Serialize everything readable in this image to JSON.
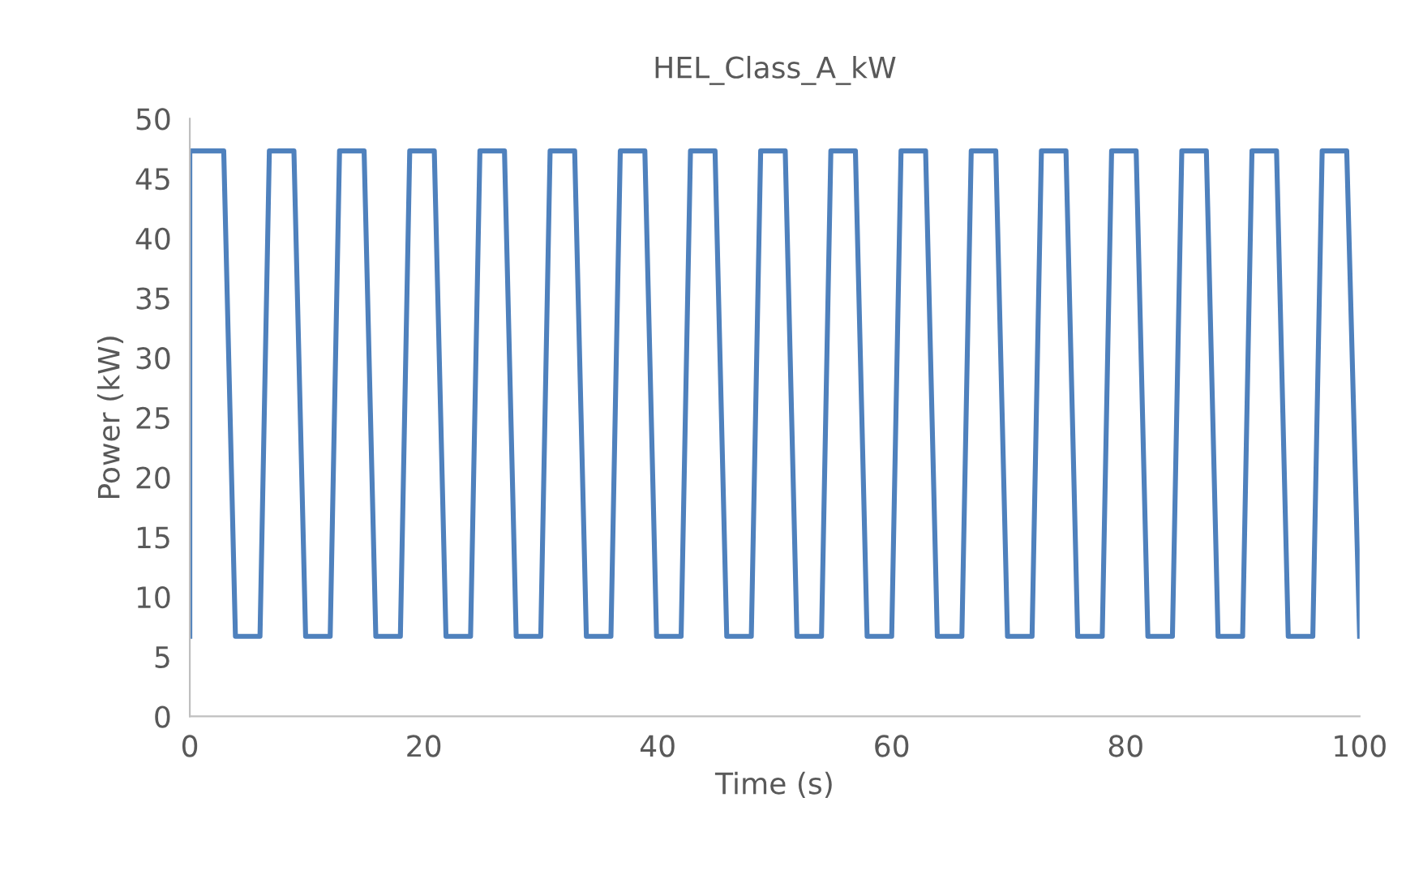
{
  "chart_data": {
    "type": "line",
    "title": "HEL_Class_A_kW",
    "xlabel": "Time (s)",
    "ylabel": "Power (kW)",
    "xlim": [
      0,
      100
    ],
    "xticks": [
      0,
      20,
      40,
      60,
      80,
      100
    ],
    "ylim": [
      0,
      50
    ],
    "yticks": [
      0,
      5,
      10,
      15,
      20,
      25,
      30,
      35,
      40,
      45,
      50
    ],
    "grid": false,
    "marker": "none",
    "line_style": "solid",
    "series": [
      {
        "color": "#4f81bd",
        "x": [
          0,
          0,
          2.9,
          3.9,
          6,
          6.8,
          8.9,
          9.9,
          12,
          12.8,
          14.9,
          15.9,
          18,
          18.8,
          20.9,
          21.9,
          24,
          24.8,
          26.9,
          27.9,
          30,
          30.8,
          32.9,
          33.9,
          36,
          36.8,
          38.9,
          39.9,
          42,
          42.8,
          44.9,
          45.9,
          48,
          48.8,
          50.9,
          51.9,
          54,
          54.8,
          56.9,
          57.9,
          60,
          60.8,
          62.9,
          63.9,
          66,
          66.8,
          68.9,
          69.9,
          72,
          72.8,
          74.9,
          75.9,
          78,
          78.8,
          80.9,
          81.9,
          84,
          84.8,
          86.9,
          87.9,
          90,
          90.8,
          92.9,
          93.9,
          96,
          96.8,
          98.9,
          100
        ],
        "values": [
          6.7,
          47.3,
          47.3,
          6.7,
          6.7,
          47.3,
          47.3,
          6.7,
          6.7,
          47.3,
          47.3,
          6.7,
          6.7,
          47.3,
          47.3,
          6.7,
          6.7,
          47.3,
          47.3,
          6.7,
          6.7,
          47.3,
          47.3,
          6.7,
          6.7,
          47.3,
          47.3,
          6.7,
          6.7,
          47.3,
          47.3,
          6.7,
          6.7,
          47.3,
          47.3,
          6.7,
          6.7,
          47.3,
          47.3,
          6.7,
          6.7,
          47.3,
          47.3,
          6.7,
          6.7,
          47.3,
          47.3,
          6.7,
          6.7,
          47.3,
          47.3,
          6.7,
          6.7,
          47.3,
          47.3,
          6.7,
          6.7,
          47.3,
          47.3,
          6.7,
          6.7,
          47.3,
          47.3,
          6.7,
          6.7,
          47.3,
          47.3,
          6.7
        ]
      }
    ]
  }
}
